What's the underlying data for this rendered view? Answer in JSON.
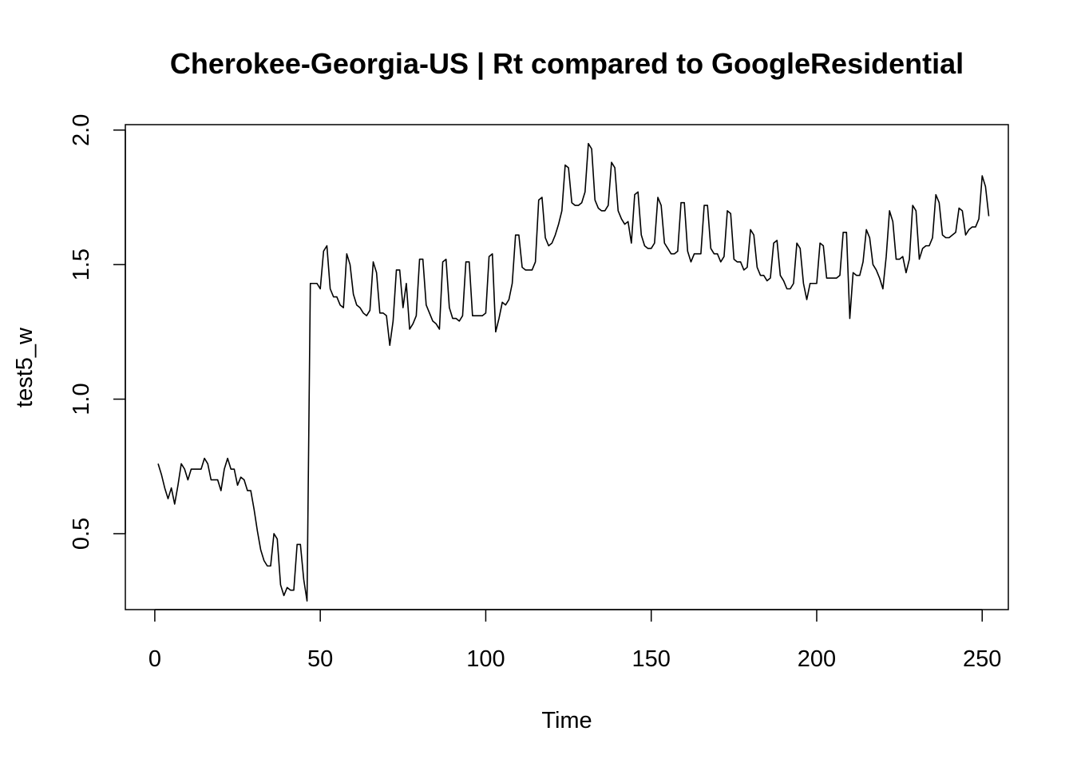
{
  "chart_data": {
    "type": "line",
    "title": "Cherokee-Georgia-US | Rt compared to GoogleResidential",
    "xlabel": "Time",
    "ylabel": "test5_w",
    "xlim": [
      -8.9,
      257.9
    ],
    "ylim": [
      0.2178,
      2.0202
    ],
    "x_ticks": [
      0,
      50,
      100,
      150,
      200,
      250
    ],
    "y_ticks": [
      0.5,
      1.0,
      1.5,
      2.0
    ],
    "x_tick_labels": [
      "0",
      "50",
      "100",
      "150",
      "200",
      "250"
    ],
    "y_tick_labels": [
      "0.5",
      "1.0",
      "1.5",
      "2.0"
    ],
    "grid": false,
    "legend": "none",
    "line_color": "#000000",
    "series": [
      {
        "x_start": 1,
        "x_step": 1,
        "values": [
          0.76,
          0.72,
          0.67,
          0.63,
          0.67,
          0.61,
          0.68,
          0.76,
          0.74,
          0.7,
          0.74,
          0.74,
          0.74,
          0.74,
          0.78,
          0.76,
          0.7,
          0.7,
          0.7,
          0.66,
          0.74,
          0.78,
          0.74,
          0.74,
          0.68,
          0.71,
          0.7,
          0.66,
          0.66,
          0.59,
          0.51,
          0.44,
          0.4,
          0.38,
          0.38,
          0.5,
          0.48,
          0.31,
          0.27,
          0.3,
          0.29,
          0.29,
          0.46,
          0.46,
          0.33,
          0.25,
          1.43,
          1.43,
          1.43,
          1.41,
          1.55,
          1.57,
          1.41,
          1.38,
          1.38,
          1.35,
          1.34,
          1.54,
          1.5,
          1.39,
          1.35,
          1.34,
          1.32,
          1.31,
          1.33,
          1.51,
          1.47,
          1.32,
          1.32,
          1.31,
          1.2,
          1.29,
          1.48,
          1.48,
          1.34,
          1.43,
          1.26,
          1.28,
          1.31,
          1.52,
          1.52,
          1.35,
          1.32,
          1.29,
          1.28,
          1.26,
          1.51,
          1.52,
          1.34,
          1.3,
          1.3,
          1.29,
          1.31,
          1.51,
          1.51,
          1.31,
          1.31,
          1.31,
          1.31,
          1.32,
          1.53,
          1.54,
          1.25,
          1.3,
          1.36,
          1.35,
          1.37,
          1.43,
          1.61,
          1.61,
          1.49,
          1.48,
          1.48,
          1.48,
          1.51,
          1.74,
          1.75,
          1.6,
          1.57,
          1.58,
          1.61,
          1.65,
          1.7,
          1.87,
          1.86,
          1.73,
          1.72,
          1.72,
          1.73,
          1.77,
          1.95,
          1.93,
          1.74,
          1.71,
          1.7,
          1.7,
          1.72,
          1.88,
          1.86,
          1.7,
          1.67,
          1.65,
          1.66,
          1.58,
          1.76,
          1.77,
          1.61,
          1.57,
          1.56,
          1.56,
          1.58,
          1.75,
          1.72,
          1.58,
          1.56,
          1.54,
          1.54,
          1.55,
          1.73,
          1.73,
          1.55,
          1.51,
          1.54,
          1.54,
          1.54,
          1.72,
          1.72,
          1.56,
          1.54,
          1.54,
          1.51,
          1.53,
          1.7,
          1.69,
          1.52,
          1.51,
          1.51,
          1.48,
          1.49,
          1.63,
          1.61,
          1.49,
          1.46,
          1.46,
          1.44,
          1.45,
          1.58,
          1.59,
          1.46,
          1.44,
          1.41,
          1.41,
          1.43,
          1.58,
          1.56,
          1.43,
          1.37,
          1.43,
          1.43,
          1.43,
          1.58,
          1.57,
          1.45,
          1.45,
          1.45,
          1.45,
          1.46,
          1.62,
          1.62,
          1.3,
          1.47,
          1.46,
          1.46,
          1.51,
          1.63,
          1.6,
          1.5,
          1.48,
          1.45,
          1.41,
          1.53,
          1.7,
          1.66,
          1.52,
          1.52,
          1.53,
          1.47,
          1.52,
          1.72,
          1.7,
          1.52,
          1.56,
          1.57,
          1.57,
          1.6,
          1.76,
          1.73,
          1.61,
          1.6,
          1.6,
          1.61,
          1.62,
          1.71,
          1.7,
          1.61,
          1.63,
          1.64,
          1.64,
          1.67,
          1.83,
          1.79,
          1.68
        ]
      }
    ]
  }
}
